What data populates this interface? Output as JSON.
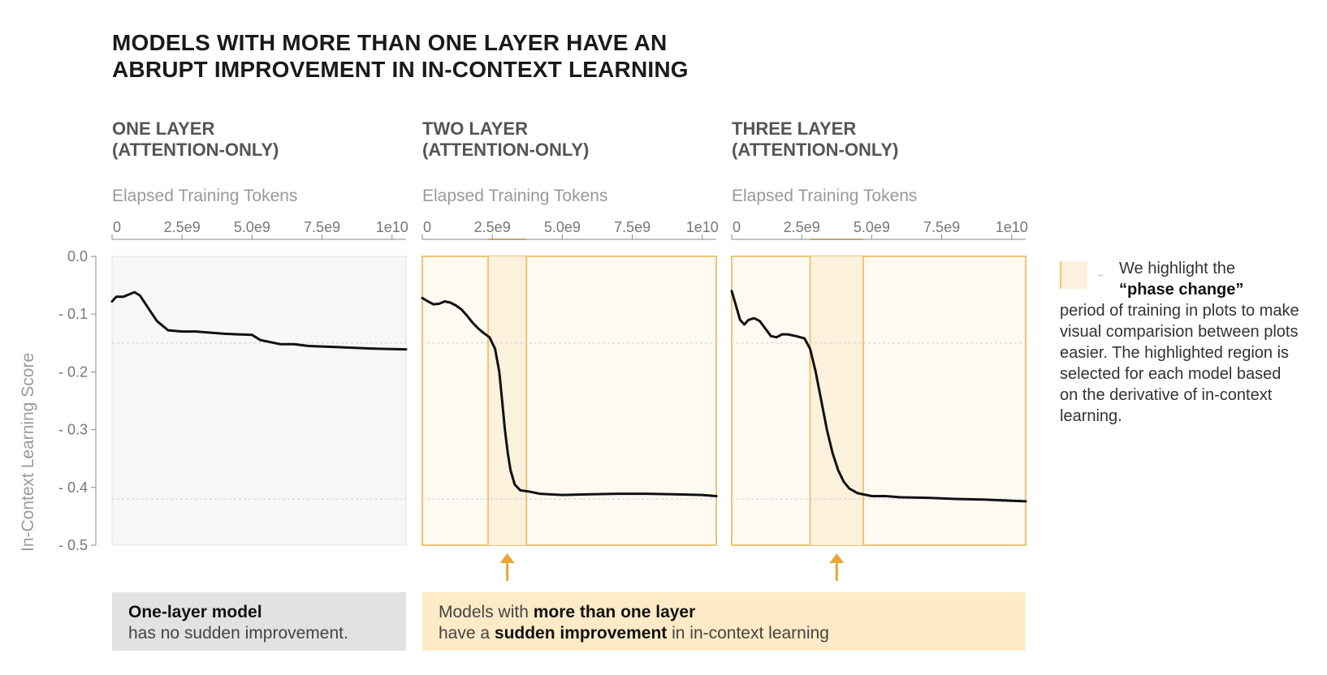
{
  "title_lines": [
    "MODELS WITH MORE THAN ONE LAYER HAVE AN",
    "ABRUPT IMPROVEMENT IN IN-CONTEXT LEARNING"
  ],
  "y_axis_label": "In-Context Learning Score",
  "x_axis_label": "Elapsed Training Tokens",
  "panels": [
    {
      "title_lines": [
        "ONE LAYER",
        "(ATTENTION-ONLY)"
      ]
    },
    {
      "title_lines": [
        "TWO LAYER",
        "(ATTENTION-ONLY)"
      ]
    },
    {
      "title_lines": [
        "THREE LAYER",
        "(ATTENTION-ONLY)"
      ]
    }
  ],
  "legend": {
    "line1": "We highlight the",
    "line2": "“phase change”",
    "rest": "period of training in plots to make visual comparision between plots easier. The highlighted region is selected for each model based on the derivative of in-context learning."
  },
  "callouts": {
    "gray": {
      "bold": "One-layer model",
      "text": "has no sudden improvement."
    },
    "orange": {
      "l1_a": "Models with ",
      "l1_b": "more than one layer",
      "l2_a": "have a ",
      "l2_b": "sudden improvement",
      "l2_c": " in in-context learning"
    }
  },
  "colors": {
    "highlight_fill": "#fbf1dd",
    "highlight_line": "#f0c472",
    "arrow": "#e8a53a",
    "line": "#111111",
    "plot_bg": "#f7f7f7",
    "plot_bg_hl": "#fefaf2"
  },
  "chart_data": [
    {
      "type": "line",
      "panel": "ONE LAYER (ATTENTION-ONLY)",
      "xlim": [
        0,
        10500000000.0
      ],
      "ylim": [
        0.0,
        -0.5
      ],
      "xticks": [
        0,
        2500000000.0,
        5000000000.0,
        7500000000.0,
        10000000000.0
      ],
      "xtick_labels": [
        "0",
        "2.5e9",
        "5.0e9",
        "7.5e9",
        "1e10"
      ],
      "yticks": [
        0.0,
        -0.1,
        -0.2,
        -0.3,
        -0.4,
        -0.5
      ],
      "ytick_labels": [
        "0.0",
        "- 0.1",
        "- 0.2",
        "- 0.3",
        "- 0.4",
        "- 0.5"
      ],
      "show_yaxis": true,
      "reference_lines": [
        -0.15,
        -0.42
      ],
      "phase_change": null,
      "x": [
        0,
        150000000.0,
        400000000.0,
        600000000.0,
        800000000.0,
        1000000000.0,
        1300000000.0,
        1600000000.0,
        2000000000.0,
        2500000000.0,
        3000000000.0,
        3500000000.0,
        4000000000.0,
        4500000000.0,
        5000000000.0,
        5300000000.0,
        6000000000.0,
        6500000000.0,
        7000000000.0,
        7500000000.0,
        8000000000.0,
        8500000000.0,
        9000000000.0,
        9500000000.0,
        10500000000.0
      ],
      "y": [
        -0.078,
        -0.07,
        -0.07,
        -0.066,
        -0.062,
        -0.068,
        -0.09,
        -0.112,
        -0.128,
        -0.13,
        -0.13,
        -0.132,
        -0.134,
        -0.135,
        -0.136,
        -0.145,
        -0.152,
        -0.152,
        -0.155,
        -0.156,
        -0.157,
        -0.158,
        -0.159,
        -0.16,
        -0.161
      ]
    },
    {
      "type": "line",
      "panel": "TWO LAYER (ATTENTION-ONLY)",
      "xlim": [
        0,
        10500000000.0
      ],
      "ylim": [
        0.0,
        -0.5
      ],
      "xticks": [
        0,
        2500000000.0,
        5000000000.0,
        7500000000.0,
        10000000000.0
      ],
      "xtick_labels": [
        "0",
        "2.5e9",
        "5.0e9",
        "7.5e9",
        "1e10"
      ],
      "show_yaxis": false,
      "reference_lines": [
        -0.15,
        -0.42
      ],
      "phase_change": [
        2350000000.0,
        3720000000.0
      ],
      "x": [
        0,
        200000000.0,
        400000000.0,
        600000000.0,
        800000000.0,
        1000000000.0,
        1200000000.0,
        1400000000.0,
        1600000000.0,
        1800000000.0,
        2000000000.0,
        2200000000.0,
        2400000000.0,
        2600000000.0,
        2750000000.0,
        2850000000.0,
        2950000000.0,
        3050000000.0,
        3150000000.0,
        3300000000.0,
        3500000000.0,
        3800000000.0,
        4200000000.0,
        5000000000.0,
        6000000000.0,
        7000000000.0,
        8000000000.0,
        9000000000.0,
        10000000000.0,
        10500000000.0
      ],
      "y": [
        -0.072,
        -0.078,
        -0.083,
        -0.082,
        -0.078,
        -0.08,
        -0.085,
        -0.092,
        -0.103,
        -0.115,
        -0.125,
        -0.133,
        -0.14,
        -0.16,
        -0.2,
        -0.25,
        -0.3,
        -0.34,
        -0.37,
        -0.395,
        -0.405,
        -0.407,
        -0.411,
        -0.413,
        -0.412,
        -0.411,
        -0.411,
        -0.412,
        -0.413,
        -0.415
      ]
    },
    {
      "type": "line",
      "panel": "THREE LAYER (ATTENTION-ONLY)",
      "xlim": [
        0,
        10500000000.0
      ],
      "ylim": [
        0.0,
        -0.5
      ],
      "xticks": [
        0,
        2500000000.0,
        5000000000.0,
        7500000000.0,
        10000000000.0
      ],
      "xtick_labels": [
        "0",
        "2.5e9",
        "5.0e9",
        "7.5e9",
        "1e10"
      ],
      "show_yaxis": false,
      "reference_lines": [
        -0.15,
        -0.42
      ],
      "phase_change": [
        2800000000.0,
        4700000000.0
      ],
      "x": [
        0,
        150000000.0,
        300000000.0,
        450000000.0,
        600000000.0,
        800000000.0,
        1000000000.0,
        1200000000.0,
        1400000000.0,
        1600000000.0,
        1800000000.0,
        2000000000.0,
        2300000000.0,
        2600000000.0,
        2800000000.0,
        3000000000.0,
        3200000000.0,
        3400000000.0,
        3600000000.0,
        3800000000.0,
        4000000000.0,
        4200000000.0,
        4500000000.0,
        5000000000.0,
        5500000000.0,
        6000000000.0,
        7000000000.0,
        8000000000.0,
        9000000000.0,
        10000000000.0,
        10500000000.0
      ],
      "y": [
        -0.06,
        -0.085,
        -0.11,
        -0.118,
        -0.11,
        -0.107,
        -0.112,
        -0.125,
        -0.138,
        -0.14,
        -0.135,
        -0.135,
        -0.138,
        -0.142,
        -0.16,
        -0.2,
        -0.25,
        -0.3,
        -0.34,
        -0.37,
        -0.39,
        -0.402,
        -0.41,
        -0.415,
        -0.415,
        -0.417,
        -0.418,
        -0.42,
        -0.421,
        -0.423,
        -0.424
      ]
    }
  ]
}
